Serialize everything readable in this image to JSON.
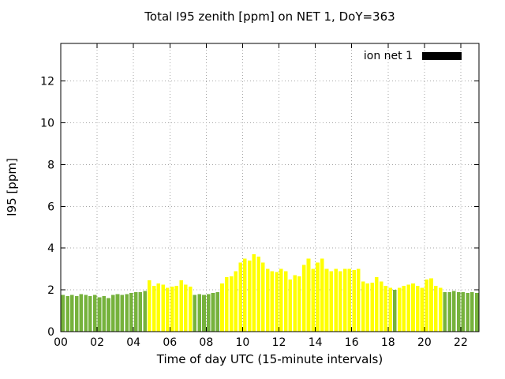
{
  "window": {
    "background": "#ffffff"
  },
  "chart_data": {
    "type": "bar",
    "title": "Total I95 zenith [ppm] on NET 1, DoY=363",
    "xlabel": "Time of day UTC (15-minute intervals)",
    "ylabel": "I95 [ppm]",
    "legend": [
      {
        "label": "ion net 1",
        "color": "#000000"
      }
    ],
    "legend_position": "top-right-inside",
    "grid": true,
    "xlim": [
      0,
      23
    ],
    "ylim": [
      0,
      13.8
    ],
    "xticks": [
      0,
      2,
      4,
      6,
      8,
      10,
      12,
      14,
      16,
      18,
      20,
      22
    ],
    "xtick_labels": [
      "00",
      "02",
      "04",
      "06",
      "08",
      "10",
      "12",
      "14",
      "16",
      "18",
      "20",
      "22"
    ],
    "yticks": [
      0,
      2,
      4,
      6,
      8,
      10,
      12
    ],
    "ytick_labels": [
      "0",
      "2",
      "4",
      "6",
      "8",
      "10",
      "12"
    ],
    "bar_start_time": "00:00",
    "bar_interval_minutes": 15,
    "grid_color": "#a6a6a6",
    "frame_color": "#000000",
    "color_map": {
      "g": "#76b23c",
      "y": "#ffff00"
    },
    "times": [
      "00:00",
      "00:15",
      "00:30",
      "00:45",
      "01:00",
      "01:15",
      "01:30",
      "01:45",
      "02:00",
      "02:15",
      "02:30",
      "02:45",
      "03:00",
      "03:15",
      "03:30",
      "03:45",
      "04:00",
      "04:15",
      "04:30",
      "04:45",
      "05:00",
      "05:15",
      "05:30",
      "05:45",
      "06:00",
      "06:15",
      "06:30",
      "06:45",
      "07:00",
      "07:15",
      "07:30",
      "07:45",
      "08:00",
      "08:15",
      "08:30",
      "08:45",
      "09:00",
      "09:15",
      "09:30",
      "09:45",
      "10:00",
      "10:15",
      "10:30",
      "10:45",
      "11:00",
      "11:15",
      "11:30",
      "11:45",
      "12:00",
      "12:15",
      "12:30",
      "12:45",
      "13:00",
      "13:15",
      "13:30",
      "13:45",
      "14:00",
      "14:15",
      "14:30",
      "14:45",
      "15:00",
      "15:15",
      "15:30",
      "15:45",
      "16:00",
      "16:15",
      "16:30",
      "16:45",
      "17:00",
      "17:15",
      "17:30",
      "17:45",
      "18:00",
      "18:15",
      "18:30",
      "18:45",
      "19:00",
      "19:15",
      "19:30",
      "19:45",
      "20:00",
      "20:15",
      "20:30",
      "20:45",
      "21:00",
      "21:15",
      "21:30",
      "21:45",
      "22:00",
      "22:15",
      "22:30",
      "22:45"
    ],
    "values": [
      1.75,
      1.7,
      1.75,
      1.7,
      1.8,
      1.75,
      1.7,
      1.75,
      1.65,
      1.7,
      1.6,
      1.75,
      1.8,
      1.75,
      1.8,
      1.85,
      1.9,
      1.9,
      1.95,
      2.45,
      2.2,
      2.3,
      2.25,
      2.1,
      2.15,
      2.2,
      2.45,
      2.25,
      2.15,
      1.75,
      1.8,
      1.75,
      1.8,
      1.85,
      1.9,
      2.3,
      2.6,
      2.65,
      2.9,
      3.3,
      3.5,
      3.4,
      3.7,
      3.6,
      3.3,
      3.0,
      2.9,
      2.85,
      3.0,
      2.9,
      2.5,
      2.7,
      2.65,
      3.2,
      3.5,
      3.0,
      3.3,
      3.5,
      3.0,
      2.9,
      3.0,
      2.9,
      3.0,
      3.0,
      2.95,
      3.0,
      2.4,
      2.3,
      2.35,
      2.6,
      2.4,
      2.2,
      2.1,
      2.0,
      2.1,
      2.2,
      2.25,
      2.3,
      2.2,
      2.1,
      2.5,
      2.55,
      2.2,
      2.1,
      1.9,
      1.9,
      1.95,
      1.9,
      1.9,
      1.85,
      1.9,
      1.85
    ],
    "colors": [
      "g",
      "g",
      "g",
      "g",
      "g",
      "g",
      "g",
      "g",
      "g",
      "g",
      "g",
      "g",
      "g",
      "g",
      "g",
      "g",
      "g",
      "g",
      "g",
      "y",
      "y",
      "y",
      "y",
      "y",
      "y",
      "y",
      "y",
      "y",
      "y",
      "g",
      "g",
      "g",
      "g",
      "g",
      "g",
      "y",
      "y",
      "y",
      "y",
      "y",
      "y",
      "y",
      "y",
      "y",
      "y",
      "y",
      "y",
      "y",
      "y",
      "y",
      "y",
      "y",
      "y",
      "y",
      "y",
      "y",
      "y",
      "y",
      "y",
      "y",
      "y",
      "y",
      "y",
      "y",
      "y",
      "y",
      "y",
      "y",
      "y",
      "y",
      "y",
      "y",
      "y",
      "g",
      "y",
      "y",
      "y",
      "y",
      "y",
      "y",
      "y",
      "y",
      "y",
      "y",
      "g",
      "g",
      "g",
      "g",
      "g",
      "g",
      "g",
      "g"
    ]
  }
}
